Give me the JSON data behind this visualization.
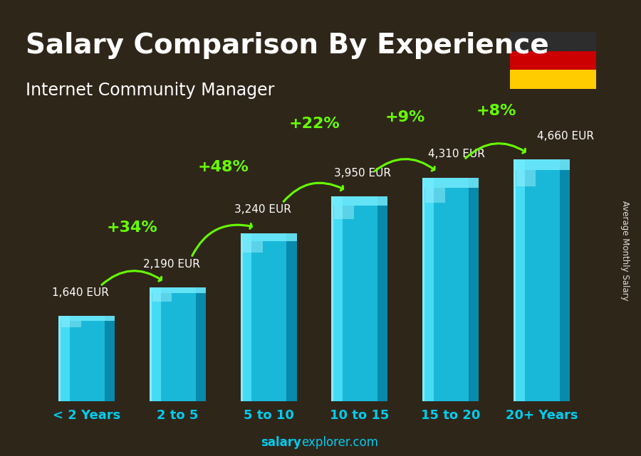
{
  "title": "Salary Comparison By Experience",
  "subtitle": "Internet Community Manager",
  "categories": [
    "< 2 Years",
    "2 to 5",
    "5 to 10",
    "10 to 15",
    "15 to 20",
    "20+ Years"
  ],
  "values": [
    1640,
    2190,
    3240,
    3950,
    4310,
    4660
  ],
  "value_labels": [
    "1,640 EUR",
    "2,190 EUR",
    "3,240 EUR",
    "3,950 EUR",
    "4,310 EUR",
    "4,660 EUR"
  ],
  "pct_changes": [
    "+34%",
    "+48%",
    "+22%",
    "+9%",
    "+8%"
  ],
  "bar_main_color": "#1ab8d8",
  "bar_highlight_color": "#55e0ff",
  "bar_dark_color": "#0077aa",
  "bar_top_color": "#66eeff",
  "background_color": "#3a3020",
  "title_color": "#ffffff",
  "subtitle_color": "#ffffff",
  "label_color": "#ffffff",
  "pct_color": "#66ff00",
  "xlabel_color": "#00ccee",
  "watermark_salary": "salary",
  "watermark_rest": "explorer.com",
  "ylabel_text": "Average Monthly Salary",
  "ylim": [
    0,
    5800
  ],
  "title_fontsize": 28,
  "subtitle_fontsize": 17,
  "bar_width": 0.62,
  "flag_colors": [
    "#2d2d2d",
    "#cc0000",
    "#ffcc00"
  ],
  "value_fontsize": 11,
  "pct_fontsize": 16,
  "cat_fontsize": 13
}
